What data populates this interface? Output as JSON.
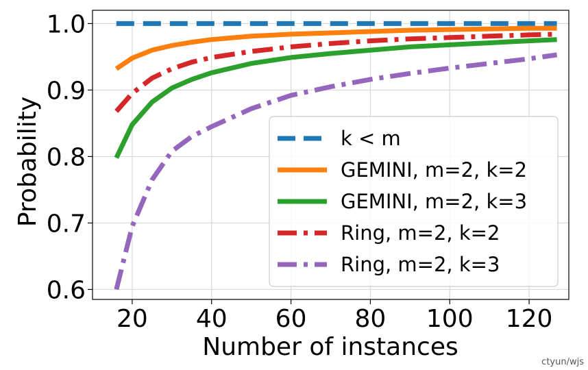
{
  "chart_data": {
    "type": "line",
    "title": "",
    "xlabel": "Number of instances",
    "ylabel": "Probability",
    "xlim": [
      10,
      130
    ],
    "ylim": [
      0.585,
      1.02
    ],
    "xticks": [
      20,
      40,
      60,
      80,
      100,
      120
    ],
    "xtick_labels": [
      "20",
      "40",
      "60",
      "80",
      "100",
      "120"
    ],
    "yticks": [
      0.6,
      0.7,
      0.8,
      0.9,
      1.0
    ],
    "ytick_labels": [
      "0.6",
      "0.7",
      "0.8",
      "0.9",
      "1.0"
    ],
    "grid": true,
    "legend_position": "lower-right",
    "x": [
      16,
      20,
      25,
      30,
      35,
      40,
      50,
      60,
      70,
      80,
      90,
      100,
      110,
      120,
      127
    ],
    "series": [
      {
        "name": "k < m",
        "style": "dashed",
        "color": "#1f77b4",
        "values": [
          1.0,
          1.0,
          1.0,
          1.0,
          1.0,
          1.0,
          1.0,
          1.0,
          1.0,
          1.0,
          1.0,
          1.0,
          1.0,
          1.0,
          1.0
        ]
      },
      {
        "name": "GEMINI, m=2, k=2",
        "style": "solid",
        "color": "#ff7f0e",
        "values": [
          0.932,
          0.948,
          0.96,
          0.967,
          0.972,
          0.976,
          0.981,
          0.984,
          0.986,
          0.988,
          0.99,
          0.991,
          0.992,
          0.993,
          0.993
        ]
      },
      {
        "name": "GEMINI, m=2, k=3",
        "style": "solid",
        "color": "#2ca02c",
        "values": [
          0.798,
          0.848,
          0.882,
          0.903,
          0.916,
          0.926,
          0.94,
          0.949,
          0.955,
          0.96,
          0.965,
          0.968,
          0.971,
          0.974,
          0.976
        ]
      },
      {
        "name": "Ring, m=2, k=2",
        "style": "dashdot",
        "color": "#d62728",
        "values": [
          0.868,
          0.895,
          0.918,
          0.932,
          0.942,
          0.949,
          0.958,
          0.965,
          0.97,
          0.974,
          0.977,
          0.979,
          0.981,
          0.983,
          0.984
        ]
      },
      {
        "name": "Ring, m=2, k=3",
        "style": "dashdot",
        "color": "#9467bd",
        "values": [
          0.6,
          0.695,
          0.765,
          0.808,
          0.83,
          0.845,
          0.872,
          0.892,
          0.905,
          0.916,
          0.925,
          0.933,
          0.94,
          0.947,
          0.953
        ]
      }
    ]
  },
  "watermark": "ctyun/wjs"
}
